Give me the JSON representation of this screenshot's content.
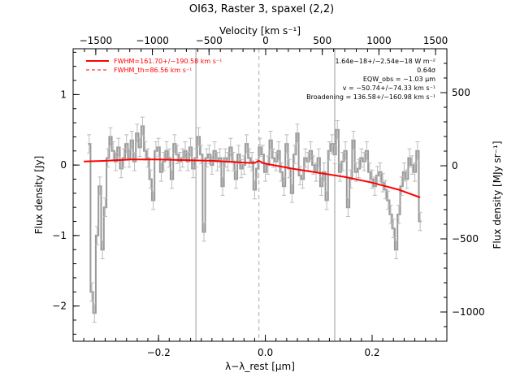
{
  "chart_data": {
    "type": "line",
    "title": "OI63, Raster 3, spaxel (2,2)",
    "xlabel": "λ−λ_rest [μm]",
    "ylabel": "Flux density [Jy]",
    "x2label": "Velocity [km s⁻¹]",
    "y2label": "Flux density [MJy sr⁻¹]",
    "xlim": [
      -0.36,
      0.34
    ],
    "ylim": [
      -2.5,
      1.65
    ],
    "x2lim": [
      -1700,
      1600
    ],
    "y2lim": [
      -1200,
      800
    ],
    "xticks": [
      -0.2,
      0.0,
      0.2
    ],
    "xtick_labels": [
      "−0.2",
      "0.0",
      "0.2"
    ],
    "yticks": [
      -2,
      -1,
      0,
      1
    ],
    "ytick_labels": [
      "−2",
      "−1",
      "0",
      "1"
    ],
    "x2ticks": [
      -1500,
      -1000,
      -500,
      0,
      500,
      1000,
      1500
    ],
    "x2tick_labels": [
      "−1500",
      "−1000",
      "−500",
      "0",
      "500",
      "1000",
      "1500"
    ],
    "y2ticks": [
      -1000,
      -500,
      0,
      500
    ],
    "y2tick_labels": [
      "−1000",
      "−500",
      "0",
      "500"
    ],
    "vertical_lines": [
      {
        "x": -0.13,
        "style": "solid",
        "color": "#999999"
      },
      {
        "x": -0.012,
        "style": "dashed",
        "color": "#aaaaaa"
      },
      {
        "x": 0.13,
        "style": "solid",
        "color": "#999999"
      }
    ],
    "legend": {
      "position": "top-left",
      "entries": [
        {
          "label": "FWHM=161.70+/−190.58 km s⁻¹",
          "style": "solid",
          "color": "#ff0000"
        },
        {
          "label": "FWHM_th=86.56 km s⁻¹",
          "style": "dashed",
          "color": "#ff0000"
        }
      ]
    },
    "annotations": [
      "1.64e−18+/−2.54e−18 W m⁻²",
      "0.64σ",
      "EQW_obs = −1.03 μm",
      "v = −50.74+/−74.33 km s⁻¹",
      "Broadening = 136.58+/−160.98 km s⁻¹"
    ],
    "series": [
      {
        "role": "data",
        "color": "#999999",
        "error": 0.13,
        "x": [
          -0.33,
          -0.325,
          -0.32,
          -0.315,
          -0.31,
          -0.305,
          -0.3,
          -0.295,
          -0.29,
          -0.285,
          -0.28,
          -0.275,
          -0.27,
          -0.265,
          -0.26,
          -0.255,
          -0.25,
          -0.245,
          -0.24,
          -0.235,
          -0.23,
          -0.225,
          -0.22,
          -0.215,
          -0.21,
          -0.205,
          -0.2,
          -0.195,
          -0.19,
          -0.185,
          -0.18,
          -0.175,
          -0.17,
          -0.165,
          -0.16,
          -0.155,
          -0.15,
          -0.145,
          -0.14,
          -0.135,
          -0.13,
          -0.125,
          -0.12,
          -0.115,
          -0.11,
          -0.105,
          -0.1,
          -0.095,
          -0.09,
          -0.085,
          -0.08,
          -0.075,
          -0.07,
          -0.065,
          -0.06,
          -0.055,
          -0.05,
          -0.045,
          -0.04,
          -0.035,
          -0.03,
          -0.025,
          -0.02,
          -0.015,
          -0.01,
          -0.005,
          0.0,
          0.005,
          0.01,
          0.015,
          0.02,
          0.025,
          0.03,
          0.035,
          0.04,
          0.045,
          0.05,
          0.055,
          0.06,
          0.065,
          0.07,
          0.075,
          0.08,
          0.085,
          0.09,
          0.095,
          0.1,
          0.105,
          0.11,
          0.115,
          0.12,
          0.125,
          0.13,
          0.135,
          0.14,
          0.145,
          0.15,
          0.155,
          0.16,
          0.165,
          0.17,
          0.175,
          0.18,
          0.185,
          0.19,
          0.195,
          0.2,
          0.205,
          0.21,
          0.215,
          0.22,
          0.225,
          0.23,
          0.235,
          0.24,
          0.245,
          0.25,
          0.255,
          0.26,
          0.265,
          0.27,
          0.275,
          0.28,
          0.285,
          0.29
        ],
        "y": [
          0.3,
          -1.8,
          -2.1,
          -1.0,
          -0.3,
          -1.2,
          -0.6,
          0.1,
          0.4,
          0.2,
          0.05,
          0.25,
          -0.05,
          0.1,
          0.3,
          0.1,
          0.35,
          0.05,
          0.45,
          0.25,
          0.55,
          0.2,
          0.1,
          -0.2,
          -0.5,
          0.2,
          0.25,
          -0.1,
          0.05,
          0.2,
          0.1,
          -0.2,
          0.3,
          0.15,
          0.05,
          0.1,
          0.2,
          0.05,
          0.25,
          -0.05,
          0.1,
          0.4,
          0.15,
          -0.95,
          0.1,
          0.15,
          0.0,
          0.2,
          0.05,
          0.1,
          -0.3,
          0.1,
          0.05,
          0.25,
          0.05,
          -0.2,
          0.15,
          -0.05,
          0.0,
          0.3,
          0.1,
          0.05,
          -0.35,
          -0.05,
          0.25,
          0.15,
          -0.1,
          0.0,
          0.35,
          0.1,
          0.05,
          0.2,
          -0.1,
          -0.3,
          0.3,
          -0.05,
          -0.4,
          0.15,
          0.45,
          -0.15,
          -0.2,
          0.1,
          0.05,
          0.2,
          0.0,
          -0.1,
          0.1,
          -0.3,
          -0.1,
          -0.5,
          0.2,
          0.3,
          0.15,
          0.5,
          -0.1,
          0.05,
          0.2,
          -0.6,
          -0.2,
          0.35,
          -0.1,
          -0.05,
          0.1,
          0.05,
          0.2,
          -0.1,
          -0.2,
          -0.3,
          -0.15,
          -0.1,
          -0.25,
          -0.35,
          -0.5,
          -0.7,
          -0.9,
          -1.2,
          -0.7,
          -0.3,
          -0.1,
          -0.2,
          0.1,
          0.0,
          -0.1,
          0.2,
          -0.8
        ]
      },
      {
        "role": "fit",
        "color": "#ff0000",
        "x": [
          -0.34,
          -0.3,
          -0.25,
          -0.2,
          -0.15,
          -0.1,
          -0.05,
          -0.03,
          -0.02,
          -0.012,
          -0.005,
          0.0,
          0.05,
          0.1,
          0.15,
          0.2,
          0.25,
          0.29
        ],
        "y": [
          0.05,
          0.06,
          0.08,
          0.08,
          0.07,
          0.06,
          0.04,
          0.03,
          0.03,
          0.06,
          0.03,
          0.02,
          -0.05,
          -0.11,
          -0.17,
          -0.25,
          -0.35,
          -0.46
        ]
      }
    ]
  }
}
